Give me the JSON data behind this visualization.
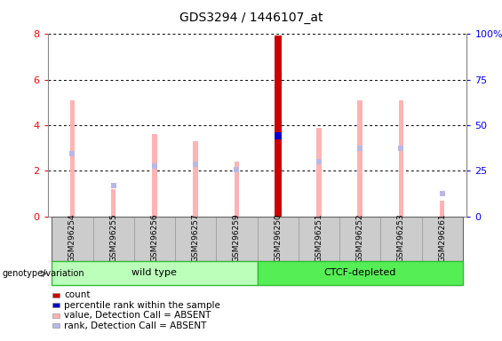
{
  "title": "GDS3294 / 1446107_at",
  "samples": [
    "GSM296254",
    "GSM296255",
    "GSM296256",
    "GSM296257",
    "GSM296259",
    "GSM296250",
    "GSM296251",
    "GSM296252",
    "GSM296253",
    "GSM296261"
  ],
  "value_absent": [
    5.1,
    1.2,
    3.6,
    3.3,
    2.4,
    7.95,
    3.9,
    5.1,
    5.1,
    0.7
  ],
  "rank_absent": [
    2.75,
    1.35,
    2.2,
    2.3,
    2.05,
    3.55,
    2.4,
    3.0,
    3.0,
    1.0
  ],
  "count_val": 7.95,
  "count_idx": 5,
  "percentile_val": 3.55,
  "percentile_idx": 5,
  "ylim": [
    0,
    8
  ],
  "y2lim": [
    0,
    100
  ],
  "yticks": [
    0,
    2,
    4,
    6,
    8
  ],
  "y2ticks": [
    0,
    25,
    50,
    75,
    100
  ],
  "y2labels": [
    "0",
    "25",
    "50",
    "75",
    "100%"
  ],
  "color_count": "#cc0000",
  "color_percentile": "#0000cc",
  "color_value_absent": "#ffb3b3",
  "color_rank_absent": "#b8b8e8",
  "wt_color_light": "#bbffbb",
  "wt_color_border": "#33bb33",
  "ctcf_color_light": "#55ee55",
  "ctcf_color_border": "#33bb33",
  "bar_width": 0.12,
  "count_bar_width": 0.18,
  "rank_square_size": 5,
  "tick_bg_color": "#cccccc",
  "tick_border_color": "#999999",
  "legend_items": [
    {
      "label": "count",
      "color": "#cc0000"
    },
    {
      "label": "percentile rank within the sample",
      "color": "#0000cc"
    },
    {
      "label": "value, Detection Call = ABSENT",
      "color": "#ffb3b3"
    },
    {
      "label": "rank, Detection Call = ABSENT",
      "color": "#b8b8e8"
    }
  ],
  "n_wt": 5,
  "n_ctcf": 5
}
